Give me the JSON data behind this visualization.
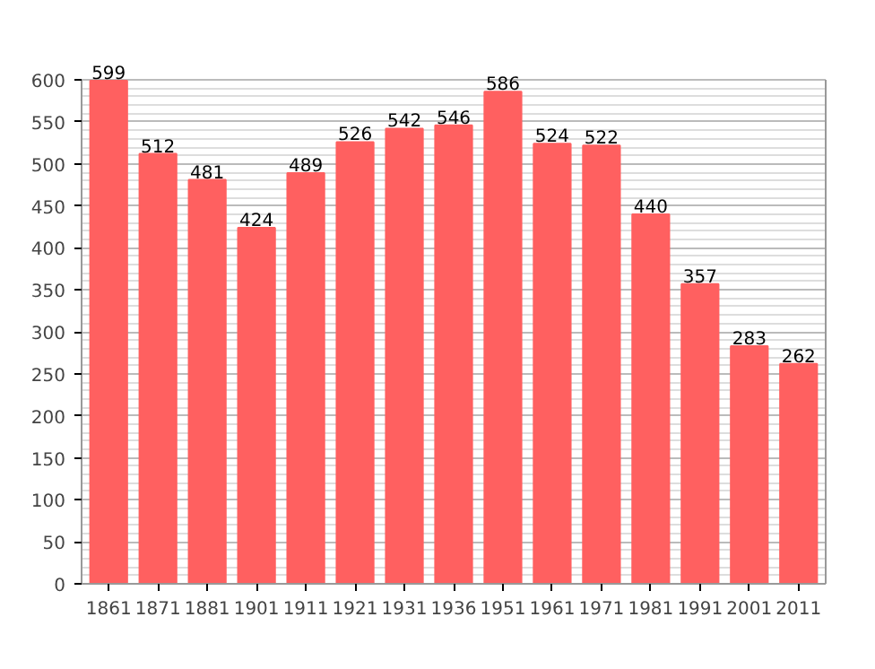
{
  "chart_data": {
    "type": "bar",
    "categories": [
      "1861",
      "1871",
      "1881",
      "1901",
      "1911",
      "1921",
      "1931",
      "1936",
      "1951",
      "1961",
      "1971",
      "1981",
      "1991",
      "2001",
      "2011"
    ],
    "values": [
      599,
      512,
      481,
      424,
      489,
      526,
      542,
      546,
      586,
      524,
      522,
      440,
      357,
      283,
      262
    ],
    "color": "#ff6060",
    "ylim": [
      0,
      600
    ],
    "yticks": [
      0,
      50,
      100,
      150,
      200,
      250,
      300,
      350,
      400,
      450,
      500,
      550,
      600
    ],
    "grid": "y",
    "data_labels": true
  }
}
